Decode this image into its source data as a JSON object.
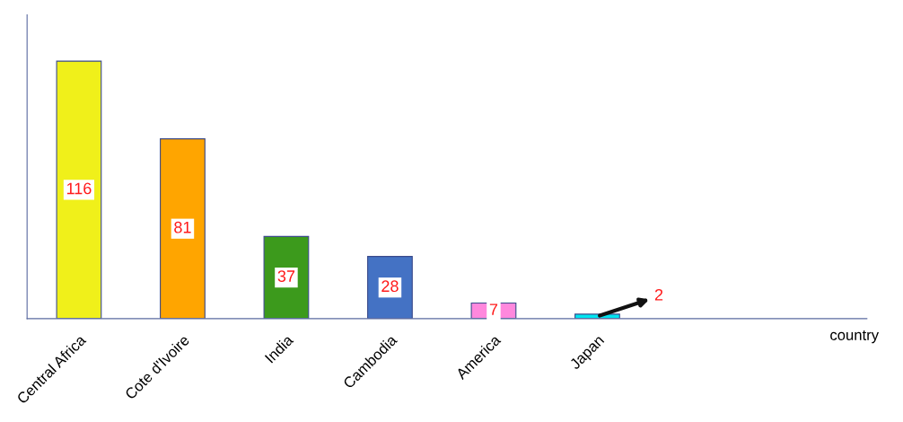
{
  "chart_data": {
    "type": "bar",
    "annotations": [
      "country"
    ],
    "categories": [
      "Central Africa",
      "Cote d'Ivoire",
      "India",
      "Cambodia",
      "America",
      "Japan"
    ],
    "values": [
      116,
      81,
      37,
      28,
      7,
      2
    ],
    "colors": [
      "#f0f01a",
      "#ffa500",
      "#3c9a1c",
      "#4472c4",
      "#ff88dd",
      "#00e5f0"
    ],
    "data_labels": true,
    "grid": false,
    "legend": false
  }
}
